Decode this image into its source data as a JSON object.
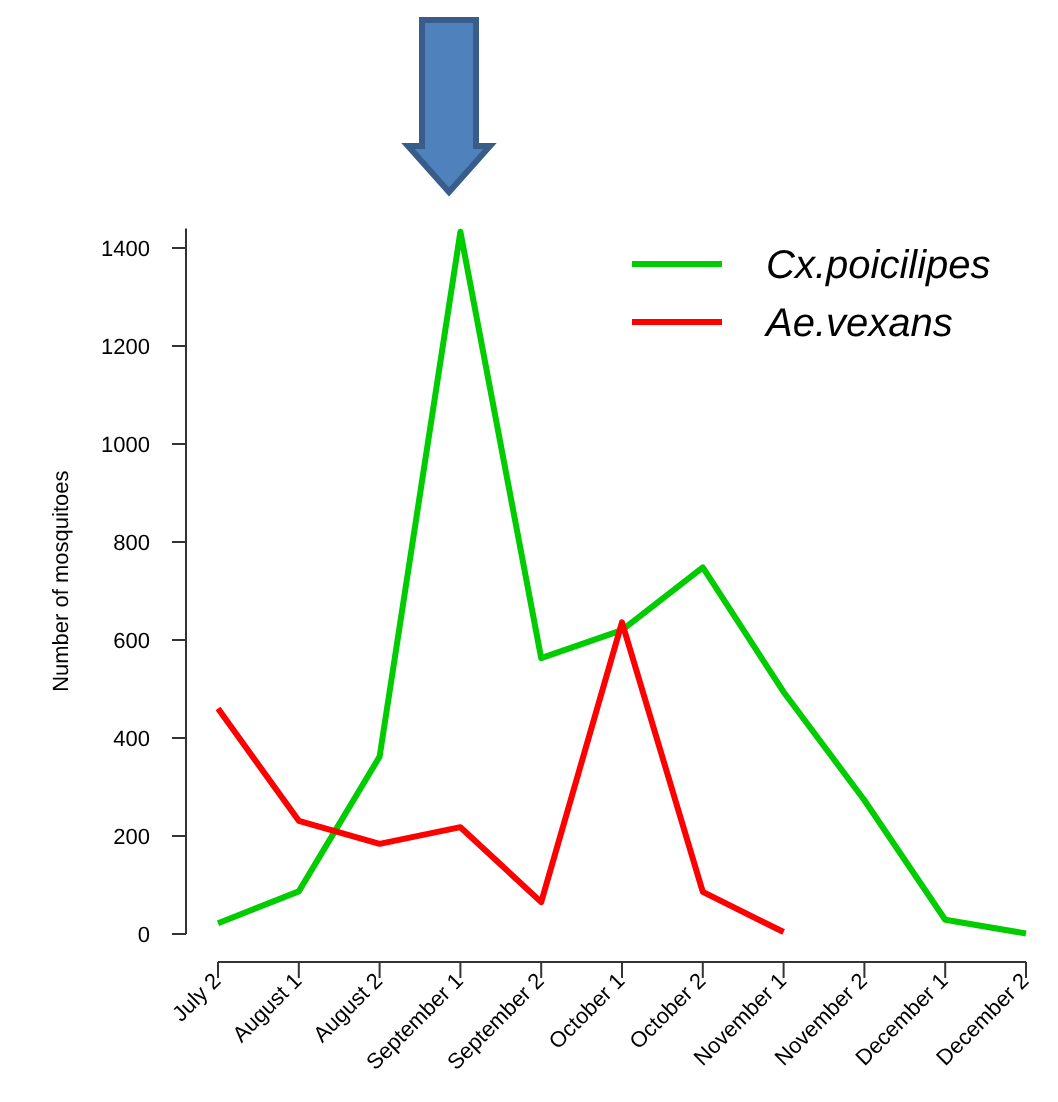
{
  "chart_data": {
    "type": "line",
    "ylabel": "Number of mosquitoes",
    "categories": [
      "July 2",
      "August 1",
      "August 2",
      "September 1",
      "September 2",
      "October 1",
      "October 2",
      "November 1",
      "November 2",
      "December 1",
      "December 2"
    ],
    "series": [
      {
        "name": "Cx.poicilipes",
        "color": "#00cc00",
        "values": [
          22,
          87,
          362,
          1433,
          563,
          620,
          748,
          494,
          273,
          29,
          1
        ]
      },
      {
        "name": "Ae.vexans",
        "color": "#ff0000",
        "values": [
          460,
          231,
          184,
          218,
          65,
          636,
          86,
          4,
          null,
          null,
          null
        ]
      }
    ],
    "ylim": [
      0,
      1440
    ],
    "yticks": [
      0,
      200,
      400,
      600,
      800,
      1000,
      1200,
      1400
    ],
    "legend": "top right",
    "grid": false,
    "marker": "none",
    "line_style": "solid"
  }
}
